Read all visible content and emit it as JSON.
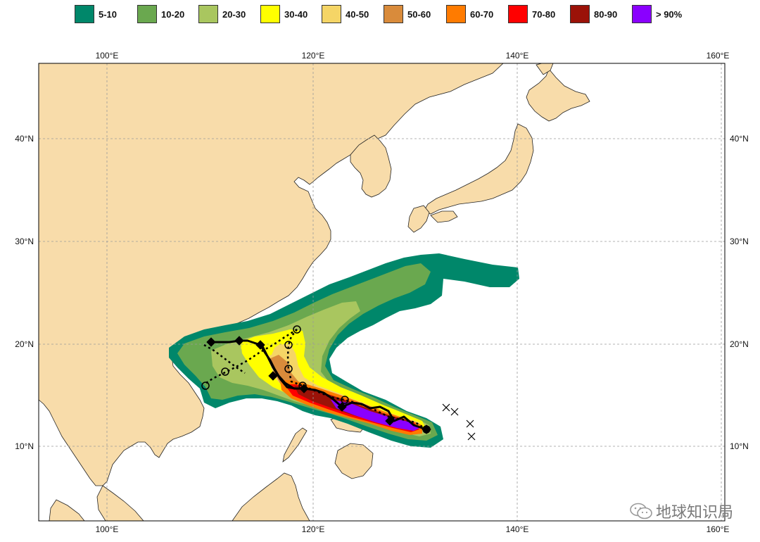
{
  "legend": [
    {
      "label": "5-10",
      "color": "#00876a"
    },
    {
      "label": "10-20",
      "color": "#6aa84f"
    },
    {
      "label": "20-30",
      "color": "#a9c65f"
    },
    {
      "label": "30-40",
      "color": "#ffff00"
    },
    {
      "label": "40-50",
      "color": "#f5d566"
    },
    {
      "label": "50-60",
      "color": "#d98b3b"
    },
    {
      "label": "60-70",
      "color": "#ff7b00"
    },
    {
      "label": "70-80",
      "color": "#ff0000"
    },
    {
      "label": "80-90",
      "color": "#9b1208"
    },
    {
      "label": "> 90%",
      "color": "#8a00ff"
    }
  ],
  "axes": {
    "lon_labels": [
      "100°E",
      "120°E",
      "140°E",
      "160°E"
    ],
    "lat_labels": [
      "40°N",
      "30°N",
      "20°N",
      "10°N"
    ]
  },
  "colors": {
    "land": "#f8dcaa",
    "sea": "#ffffff",
    "grid": "#999999",
    "track": "#000000"
  },
  "watermark": {
    "text": "地球知识局",
    "icon": "wechat-icon"
  }
}
